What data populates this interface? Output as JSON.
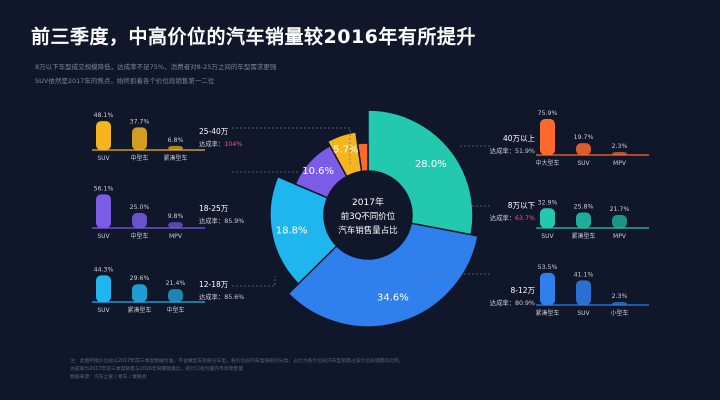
{
  "title": "前三季度，中高价位的汽车销量较2016年有所提升",
  "description": [
    "8万以下车型成交规模降低，达成率不足75%，消费者对8-25万之间的车型需求更强",
    "SUV依然是2017年的焦点，始终抓着各个价位段销售第一二位"
  ],
  "footnote": [
    "注：此图所指价位段以2017年前三季度数据为准，不含微型车及部分车型，各价位段内车型按级别分类，占比为各价位段内车型销量占该价位段销量的比例，",
    "达成率为2017年前三季度销量与2016年同期销量比，统计口径为国内市场零售量",
    "数据来源：汽车之家 / 易车 / 乘联会"
  ],
  "center_label": [
    "2017年",
    "前3Q不同价位",
    "汽车销售量占比"
  ],
  "rate_prefix": "达成率：",
  "colors": {
    "8万以下": "#22c9ae",
    "8-12万": "#2f80ed",
    "12-18万": "#1fb6f0",
    "18-25万": "#7b5ce6",
    "25-40万": "#f5b51e",
    "40万以上": "#ff6a2c"
  },
  "chart_data": [
    {
      "type": "pie",
      "title": "",
      "segments": [
        {
          "name": "8万以下",
          "value": 28.0,
          "label": "28.0%"
        },
        {
          "name": "8-12万",
          "value": 34.6,
          "label": "34.6%"
        },
        {
          "name": "12-18万",
          "value": 18.8,
          "label": "18.8%"
        },
        {
          "name": "18-25万",
          "value": 10.6,
          "label": "10.6%"
        },
        {
          "name": "25-40万",
          "value": 5.7,
          "label": "5.7%"
        },
        {
          "name": "40万以上",
          "value": 2.3,
          "label": ""
        }
      ],
      "achievement_rate": [
        {
          "name": "8万以下",
          "rate": "63.7%"
        },
        {
          "name": "8-12万",
          "rate": "80.9%"
        },
        {
          "name": "12-18万",
          "rate": "85.6%"
        },
        {
          "name": "18-25万",
          "rate": "85.9%"
        },
        {
          "name": "25-40万",
          "rate": "104%"
        },
        {
          "name": "40万以上",
          "rate": "51.9%"
        }
      ]
    },
    {
      "type": "bar",
      "group": "25-40万",
      "categories": [
        "SUV",
        "中型车",
        "紧凑型车"
      ],
      "values": [
        48.1,
        37.7,
        6.8
      ],
      "labels": [
        "48.1%",
        "37.7%",
        "6.8%"
      ],
      "rate": "104%",
      "rate_highlight": true
    },
    {
      "type": "bar",
      "group": "18-25万",
      "categories": [
        "SUV",
        "中型车",
        "MPV"
      ],
      "values": [
        56.1,
        25.0,
        9.8
      ],
      "labels": [
        "56.1%",
        "25.0%",
        "9.8%"
      ],
      "rate": "85.9%",
      "rate_highlight": false
    },
    {
      "type": "bar",
      "group": "12-18万",
      "categories": [
        "SUV",
        "紧凑型车",
        "中型车"
      ],
      "values": [
        44.3,
        29.6,
        21.4
      ],
      "labels": [
        "44.3%",
        "29.6%",
        "21.4%"
      ],
      "rate": "85.6%",
      "rate_highlight": false
    },
    {
      "type": "bar",
      "group": "40万以上",
      "categories": [
        "中大型车",
        "SUV",
        "MPV"
      ],
      "values": [
        75.9,
        19.7,
        2.3
      ],
      "labels": [
        "75.9%",
        "19.7%",
        "2.3%"
      ],
      "rate": "51.9%",
      "rate_highlight": false
    },
    {
      "type": "bar",
      "group": "8万以下",
      "categories": [
        "SUV",
        "紧凑型车",
        "MPV"
      ],
      "values": [
        32.9,
        25.8,
        21.7
      ],
      "labels": [
        "32.9%",
        "25.8%",
        "21.7%"
      ],
      "rate": "63.7%",
      "rate_highlight": true
    },
    {
      "type": "bar",
      "group": "8-12万",
      "categories": [
        "紧凑型车",
        "SUV",
        "小型车"
      ],
      "values": [
        53.5,
        41.1,
        2.3
      ],
      "labels": [
        "53.5%",
        "41.1%",
        "2.3%"
      ],
      "rate": "80.9%",
      "rate_highlight": false
    }
  ]
}
